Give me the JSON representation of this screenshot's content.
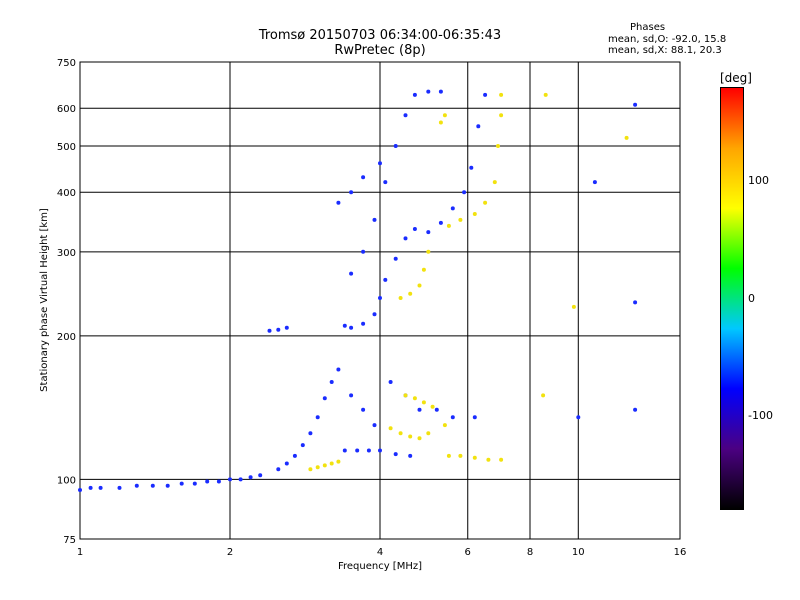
{
  "chart_data": {
    "type": "scatter",
    "title": "Tromsø 20150703 06:34:00-06:35:43",
    "subtitle": "RwPretec (8p)",
    "xlabel": "Frequency [MHz]",
    "ylabel": "Stationary phase Virtual Height [km]",
    "x_scale": "log",
    "y_scale": "log",
    "xlim": [
      1,
      16
    ],
    "ylim": [
      75,
      750
    ],
    "x_ticks": [
      1,
      2,
      4,
      6,
      8,
      10,
      16
    ],
    "x_tick_labels": [
      "1",
      "2",
      "4",
      "6",
      "8",
      "10",
      "16"
    ],
    "y_ticks": [
      75,
      100,
      200,
      300,
      400,
      500,
      600,
      750
    ],
    "y_tick_labels": [
      "75",
      "100",
      "200",
      "300",
      "400",
      "500",
      "600",
      "750"
    ],
    "grid": true,
    "phase_info": {
      "title": "Phases",
      "line1": "mean, sd,O: -92.0, 15.8",
      "line2": "mean, sd,X: 88.1, 20.3"
    },
    "colorbar": {
      "unit": "[deg]",
      "range": [
        -180,
        180
      ],
      "tick_labels": [
        {
          "value": 100,
          "label": "100"
        },
        {
          "value": 0,
          "label": "0"
        },
        {
          "value": -100,
          "label": "-100"
        }
      ],
      "colors": [
        "#000000",
        "#4b0082",
        "#0000ff",
        "#00c8ff",
        "#00ff00",
        "#ffff00",
        "#ffa500",
        "#ff0000"
      ]
    },
    "series": [
      {
        "values": [
          {
            "x": 1.0,
            "y": 95
          },
          {
            "x": 1.05,
            "y": 96
          },
          {
            "x": 1.1,
            "y": 96
          },
          {
            "x": 1.2,
            "y": 96
          },
          {
            "x": 1.3,
            "y": 97
          },
          {
            "x": 1.4,
            "y": 97
          },
          {
            "x": 1.5,
            "y": 97
          },
          {
            "x": 1.6,
            "y": 98
          },
          {
            "x": 1.7,
            "y": 98
          },
          {
            "x": 1.8,
            "y": 99
          },
          {
            "x": 1.9,
            "y": 99
          },
          {
            "x": 2.0,
            "y": 100
          },
          {
            "x": 2.1,
            "y": 100
          },
          {
            "x": 2.2,
            "y": 101
          },
          {
            "x": 2.3,
            "y": 102
          },
          {
            "x": 2.5,
            "y": 105
          },
          {
            "x": 2.6,
            "y": 108
          },
          {
            "x": 2.7,
            "y": 112
          },
          {
            "x": 2.8,
            "y": 118
          },
          {
            "x": 2.9,
            "y": 125
          },
          {
            "x": 3.0,
            "y": 135
          },
          {
            "x": 3.1,
            "y": 148
          },
          {
            "x": 3.2,
            "y": 160
          },
          {
            "x": 3.3,
            "y": 170
          },
          {
            "x": 3.4,
            "y": 115
          },
          {
            "x": 3.6,
            "y": 115
          },
          {
            "x": 3.8,
            "y": 115
          },
          {
            "x": 4.0,
            "y": 115
          },
          {
            "x": 4.3,
            "y": 113
          },
          {
            "x": 4.6,
            "y": 112
          },
          {
            "x": 3.4,
            "y": 210
          },
          {
            "x": 3.5,
            "y": 208
          },
          {
            "x": 3.7,
            "y": 212
          },
          {
            "x": 3.9,
            "y": 222
          },
          {
            "x": 4.0,
            "y": 240
          },
          {
            "x": 4.1,
            "y": 262
          },
          {
            "x": 4.3,
            "y": 290
          },
          {
            "x": 4.5,
            "y": 320
          },
          {
            "x": 4.7,
            "y": 335
          },
          {
            "x": 5.0,
            "y": 330
          },
          {
            "x": 5.3,
            "y": 345
          },
          {
            "x": 5.6,
            "y": 370
          },
          {
            "x": 5.9,
            "y": 400
          },
          {
            "x": 6.1,
            "y": 450
          },
          {
            "x": 6.3,
            "y": 550
          },
          {
            "x": 6.5,
            "y": 640
          },
          {
            "x": 3.5,
            "y": 270
          },
          {
            "x": 3.7,
            "y": 300
          },
          {
            "x": 3.9,
            "y": 350
          },
          {
            "x": 4.1,
            "y": 420
          },
          {
            "x": 4.3,
            "y": 500
          },
          {
            "x": 4.5,
            "y": 580
          },
          {
            "x": 4.7,
            "y": 640
          },
          {
            "x": 5.0,
            "y": 650
          },
          {
            "x": 5.3,
            "y": 650
          },
          {
            "x": 3.3,
            "y": 380
          },
          {
            "x": 3.5,
            "y": 400
          },
          {
            "x": 3.7,
            "y": 430
          },
          {
            "x": 4.0,
            "y": 460
          },
          {
            "x": 4.2,
            "y": 160
          },
          {
            "x": 4.5,
            "y": 150
          },
          {
            "x": 4.8,
            "y": 140
          },
          {
            "x": 5.2,
            "y": 140
          },
          {
            "x": 5.6,
            "y": 135
          },
          {
            "x": 6.2,
            "y": 135
          },
          {
            "x": 3.5,
            "y": 150
          },
          {
            "x": 3.7,
            "y": 140
          },
          {
            "x": 3.9,
            "y": 130
          },
          {
            "x": 2.4,
            "y": 205
          },
          {
            "x": 2.5,
            "y": 206
          },
          {
            "x": 2.6,
            "y": 208
          },
          {
            "x": 10.0,
            "y": 135
          },
          {
            "x": 10.8,
            "y": 420
          },
          {
            "x": 13.0,
            "y": 610
          },
          {
            "x": 13.0,
            "y": 140
          },
          {
            "x": 13.0,
            "y": 235
          }
        ]
      },
      {
        "values": [
          {
            "x": 2.9,
            "y": 105
          },
          {
            "x": 3.0,
            "y": 106
          },
          {
            "x": 3.1,
            "y": 107
          },
          {
            "x": 3.2,
            "y": 108
          },
          {
            "x": 3.3,
            "y": 109
          },
          {
            "x": 4.2,
            "y": 128
          },
          {
            "x": 4.4,
            "y": 125
          },
          {
            "x": 4.6,
            "y": 123
          },
          {
            "x": 4.8,
            "y": 122
          },
          {
            "x": 5.0,
            "y": 125
          },
          {
            "x": 5.5,
            "y": 112
          },
          {
            "x": 5.8,
            "y": 112
          },
          {
            "x": 6.2,
            "y": 111
          },
          {
            "x": 6.6,
            "y": 110
          },
          {
            "x": 7.0,
            "y": 110
          },
          {
            "x": 4.5,
            "y": 150
          },
          {
            "x": 4.7,
            "y": 148
          },
          {
            "x": 4.9,
            "y": 145
          },
          {
            "x": 5.1,
            "y": 142
          },
          {
            "x": 5.4,
            "y": 130
          },
          {
            "x": 4.4,
            "y": 240
          },
          {
            "x": 4.6,
            "y": 245
          },
          {
            "x": 4.8,
            "y": 255
          },
          {
            "x": 4.9,
            "y": 275
          },
          {
            "x": 5.0,
            "y": 300
          },
          {
            "x": 5.5,
            "y": 340
          },
          {
            "x": 5.8,
            "y": 350
          },
          {
            "x": 6.2,
            "y": 360
          },
          {
            "x": 6.5,
            "y": 380
          },
          {
            "x": 6.8,
            "y": 420
          },
          {
            "x": 6.9,
            "y": 500
          },
          {
            "x": 7.0,
            "y": 580
          },
          {
            "x": 7.0,
            "y": 640
          },
          {
            "x": 5.3,
            "y": 560
          },
          {
            "x": 5.4,
            "y": 580
          },
          {
            "x": 8.5,
            "y": 150
          },
          {
            "x": 8.6,
            "y": 640
          },
          {
            "x": 9.8,
            "y": 230
          },
          {
            "x": 12.5,
            "y": 520
          }
        ]
      }
    ]
  }
}
